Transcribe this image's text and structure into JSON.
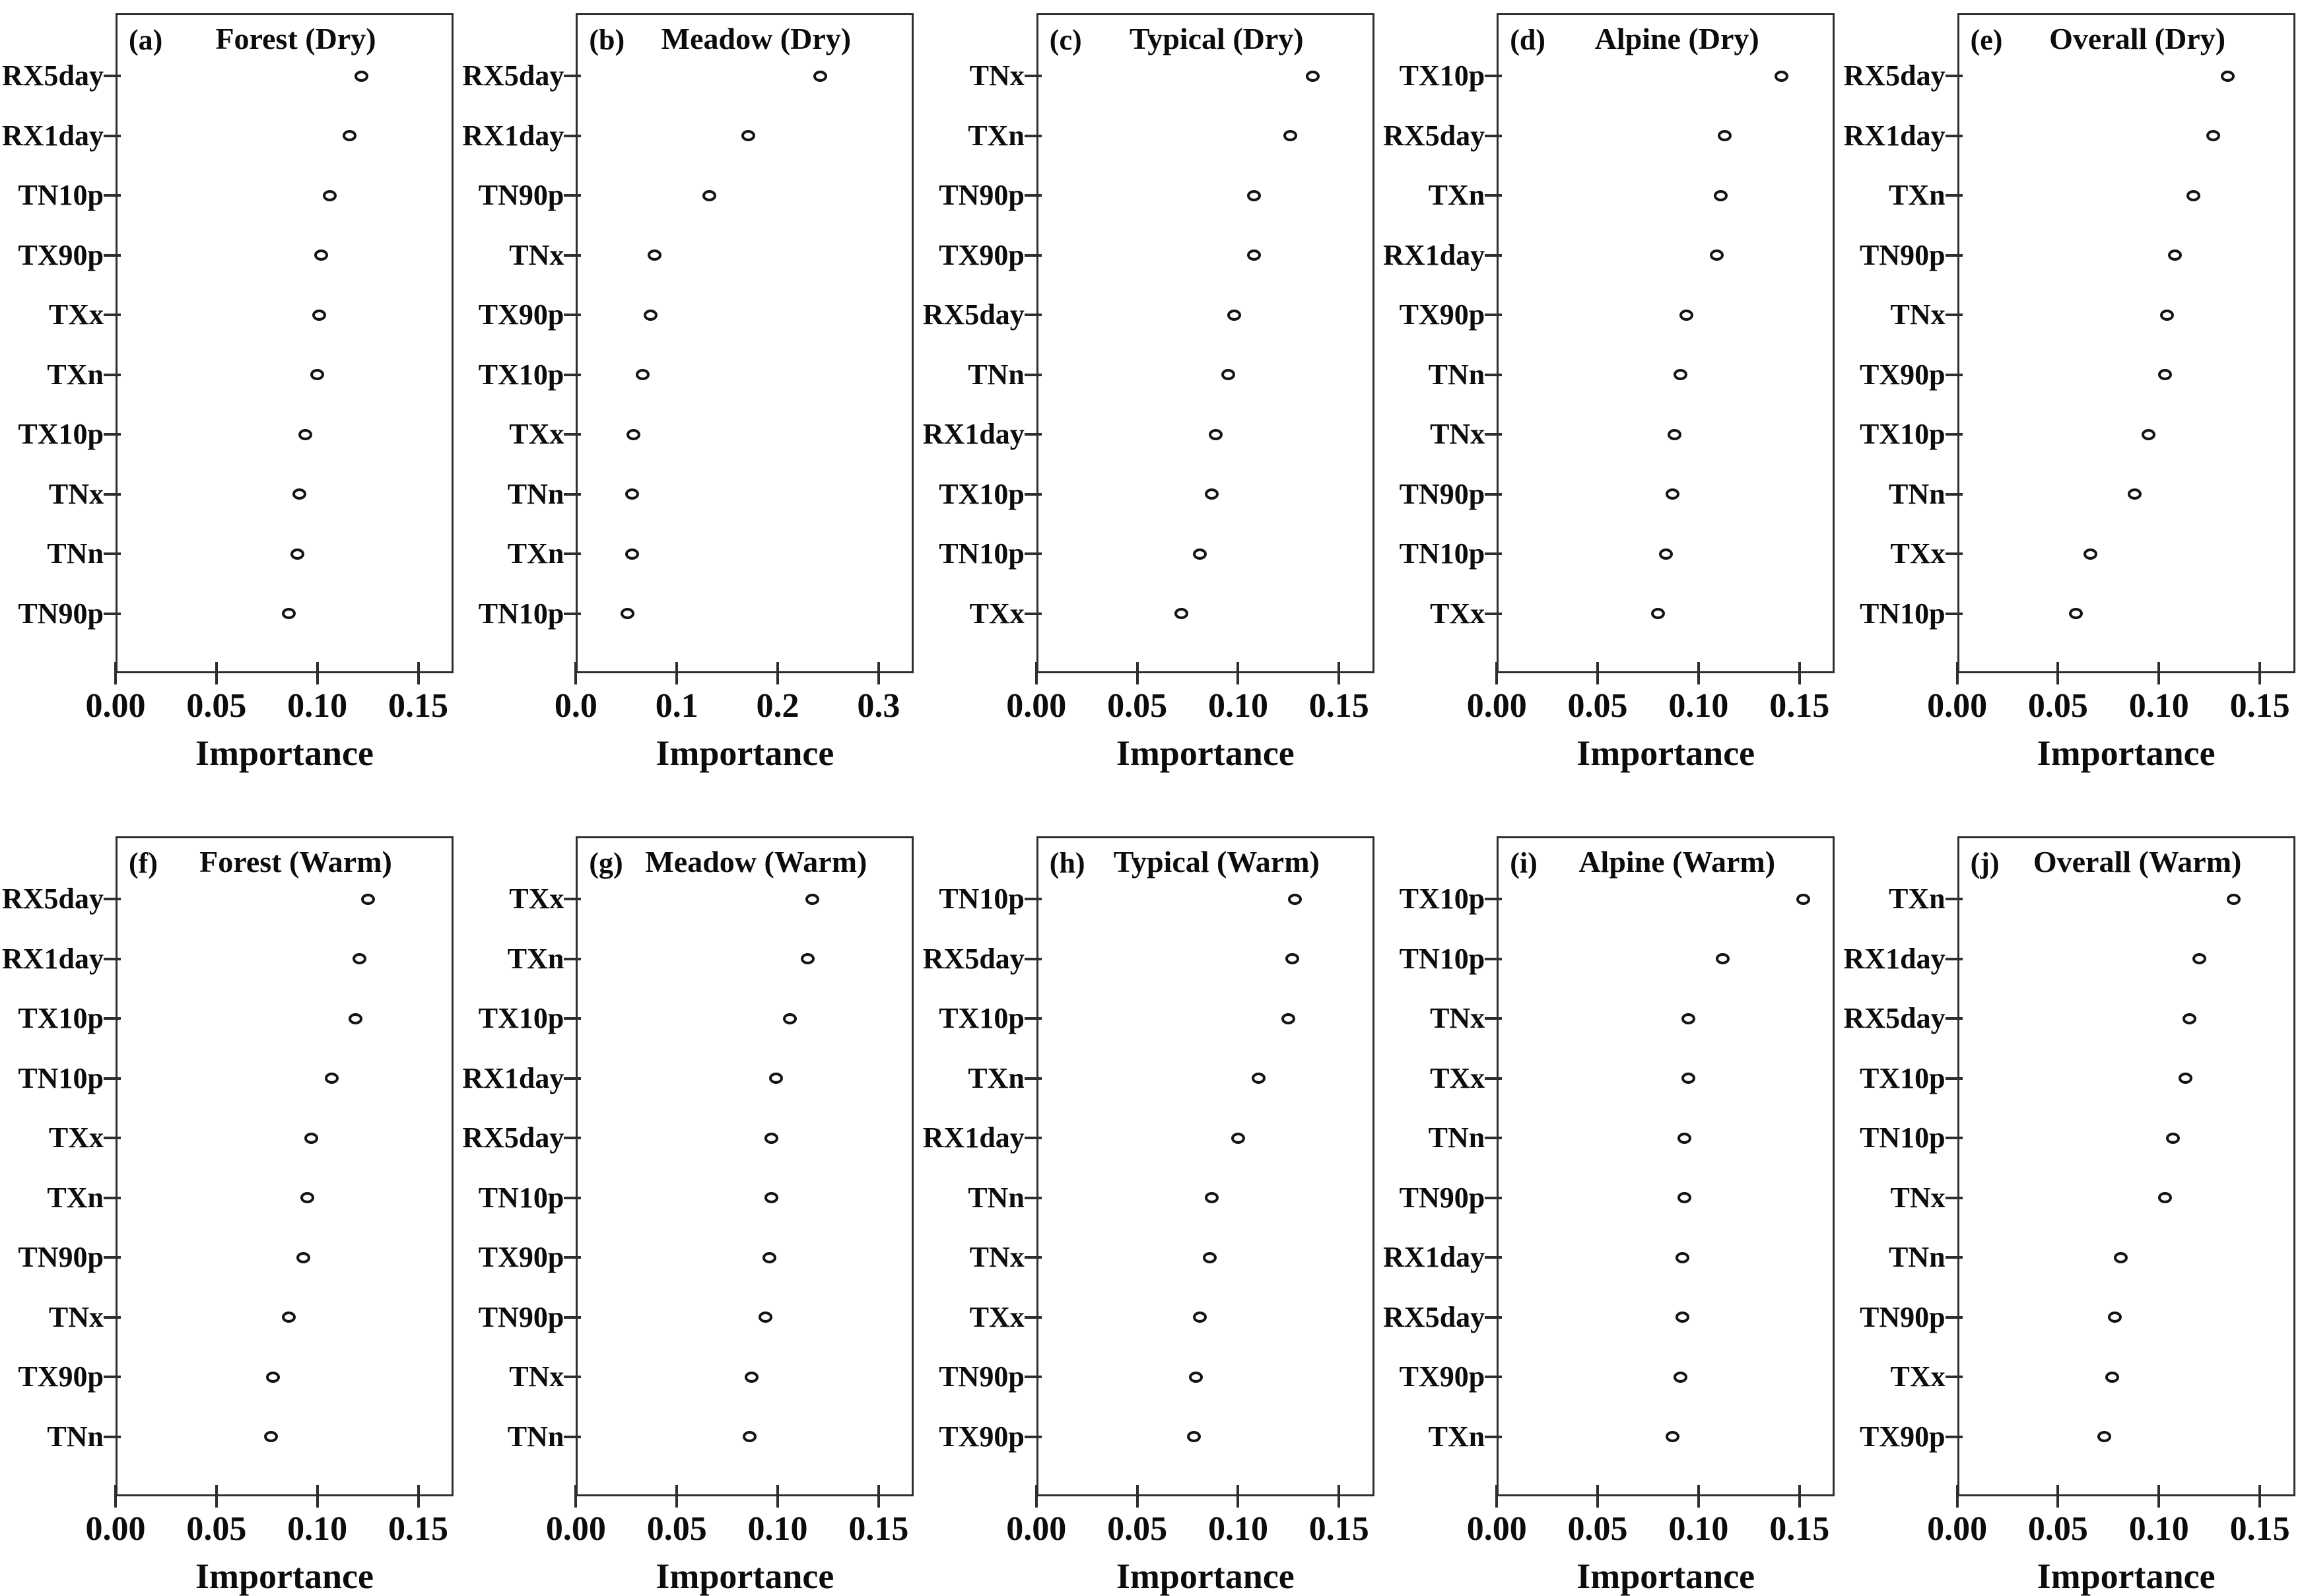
{
  "figure": {
    "description": "Variable importance dot plots for extreme climate indices across vegetation types and seasons"
  },
  "chart_data": [
    {
      "type": "scatter",
      "panel_label": "(a)",
      "title": "Forest (Dry)",
      "xlabel": "Importance",
      "xticks": [
        "0.00",
        "0.05",
        "0.10",
        "0.15"
      ],
      "xtick_values": [
        0,
        0.05,
        0.1,
        0.15
      ],
      "xlim": [
        0,
        0.1675
      ],
      "categories": [
        "RX5day",
        "RX1day",
        "TN10p",
        "TX90p",
        "TXx",
        "TXn",
        "TX10p",
        "TNx",
        "TNn",
        "TN90p"
      ],
      "values": [
        0.122,
        0.116,
        0.106,
        0.102,
        0.101,
        0.1,
        0.094,
        0.091,
        0.09,
        0.086
      ]
    },
    {
      "type": "scatter",
      "panel_label": "(b)",
      "title": "Meadow (Dry)",
      "xlabel": "Importance",
      "xticks": [
        "0.0",
        "0.1",
        "0.2",
        "0.3"
      ],
      "xtick_values": [
        0,
        0.1,
        0.2,
        0.3
      ],
      "xlim": [
        0,
        0.335
      ],
      "categories": [
        "RX5day",
        "RX1day",
        "TN90p",
        "TNx",
        "TX90p",
        "TX10p",
        "TXx",
        "TNn",
        "TXn",
        "TN10p"
      ],
      "values": [
        0.242,
        0.171,
        0.132,
        0.078,
        0.074,
        0.066,
        0.057,
        0.056,
        0.056,
        0.051
      ]
    },
    {
      "type": "scatter",
      "panel_label": "(c)",
      "title": "Typical (Dry)",
      "xlabel": "Importance",
      "xticks": [
        "0.00",
        "0.05",
        "0.10",
        "0.15"
      ],
      "xtick_values": [
        0,
        0.05,
        0.1,
        0.15
      ],
      "xlim": [
        0,
        0.1675
      ],
      "categories": [
        "TNx",
        "TXn",
        "TN90p",
        "TX90p",
        "RX5day",
        "TNn",
        "RX1day",
        "TX10p",
        "TN10p",
        "TXx"
      ],
      "values": [
        0.137,
        0.126,
        0.108,
        0.108,
        0.098,
        0.095,
        0.089,
        0.087,
        0.081,
        0.072
      ]
    },
    {
      "type": "scatter",
      "panel_label": "(d)",
      "title": "Alpine (Dry)",
      "xlabel": "Importance",
      "xticks": [
        "0.00",
        "0.05",
        "0.10",
        "0.15"
      ],
      "xtick_values": [
        0,
        0.05,
        0.1,
        0.15
      ],
      "xlim": [
        0,
        0.1675
      ],
      "categories": [
        "TX10p",
        "RX5day",
        "TXn",
        "RX1day",
        "TX90p",
        "TNn",
        "TNx",
        "TN90p",
        "TN10p",
        "TXx"
      ],
      "values": [
        0.141,
        0.113,
        0.111,
        0.109,
        0.094,
        0.091,
        0.088,
        0.087,
        0.084,
        0.08
      ]
    },
    {
      "type": "scatter",
      "panel_label": "(e)",
      "title": "Overall (Dry)",
      "xlabel": "Importance",
      "xticks": [
        "0.00",
        "0.05",
        "0.10",
        "0.15"
      ],
      "xtick_values": [
        0,
        0.05,
        0.1,
        0.15
      ],
      "xlim": [
        0,
        0.1675
      ],
      "categories": [
        "RX5day",
        "RX1day",
        "TXn",
        "TN90p",
        "TNx",
        "TX90p",
        "TX10p",
        "TNn",
        "TXx",
        "TN10p"
      ],
      "values": [
        0.134,
        0.127,
        0.117,
        0.108,
        0.104,
        0.103,
        0.095,
        0.088,
        0.066,
        0.059
      ]
    },
    {
      "type": "scatter",
      "panel_label": "(f)",
      "title": "Forest (Warm)",
      "xlabel": "Importance",
      "xticks": [
        "0.00",
        "0.05",
        "0.10",
        "0.15"
      ],
      "xtick_values": [
        0,
        0.05,
        0.1,
        0.15
      ],
      "xlim": [
        0,
        0.1675
      ],
      "categories": [
        "RX5day",
        "RX1day",
        "TX10p",
        "TN10p",
        "TXx",
        "TXn",
        "TN90p",
        "TNx",
        "TX90p",
        "TNn"
      ],
      "values": [
        0.125,
        0.121,
        0.119,
        0.107,
        0.097,
        0.095,
        0.093,
        0.086,
        0.078,
        0.077
      ]
    },
    {
      "type": "scatter",
      "panel_label": "(g)",
      "title": "Meadow (Warm)",
      "xlabel": "Importance",
      "xticks": [
        "0.00",
        "0.05",
        "0.10",
        "0.15"
      ],
      "xtick_values": [
        0,
        0.05,
        0.1,
        0.15
      ],
      "xlim": [
        0,
        0.1675
      ],
      "categories": [
        "TXx",
        "TXn",
        "TX10p",
        "RX1day",
        "RX5day",
        "TN10p",
        "TX90p",
        "TN90p",
        "TNx",
        "TNn"
      ],
      "values": [
        0.117,
        0.115,
        0.106,
        0.099,
        0.097,
        0.097,
        0.096,
        0.094,
        0.087,
        0.086
      ]
    },
    {
      "type": "scatter",
      "panel_label": "(h)",
      "title": "Typical (Warm)",
      "xlabel": "Importance",
      "xticks": [
        "0.00",
        "0.05",
        "0.10",
        "0.15"
      ],
      "xtick_values": [
        0,
        0.05,
        0.1,
        0.15
      ],
      "xlim": [
        0,
        0.1675
      ],
      "categories": [
        "TN10p",
        "RX5day",
        "TX10p",
        "TXn",
        "RX1day",
        "TNn",
        "TNx",
        "TXx",
        "TN90p",
        "TX90p"
      ],
      "values": [
        0.128,
        0.127,
        0.125,
        0.11,
        0.1,
        0.087,
        0.086,
        0.081,
        0.079,
        0.078
      ]
    },
    {
      "type": "scatter",
      "panel_label": "(i)",
      "title": "Alpine (Warm)",
      "xlabel": "Importance",
      "xticks": [
        "0.00",
        "0.05",
        "0.10",
        "0.15"
      ],
      "xtick_values": [
        0,
        0.05,
        0.1,
        0.15
      ],
      "xlim": [
        0,
        0.1675
      ],
      "categories": [
        "TX10p",
        "TN10p",
        "TNx",
        "TXx",
        "TNn",
        "TN90p",
        "RX1day",
        "RX5day",
        "TX90p",
        "TXn"
      ],
      "values": [
        0.152,
        0.112,
        0.095,
        0.095,
        0.093,
        0.093,
        0.092,
        0.092,
        0.091,
        0.087
      ]
    },
    {
      "type": "scatter",
      "panel_label": "(j)",
      "title": "Overall (Warm)",
      "xlabel": "Importance",
      "xticks": [
        "0.00",
        "0.05",
        "0.10",
        "0.15"
      ],
      "xtick_values": [
        0,
        0.05,
        0.1,
        0.15
      ],
      "xlim": [
        0,
        0.1675
      ],
      "categories": [
        "TXn",
        "RX1day",
        "RX5day",
        "TX10p",
        "TN10p",
        "TNx",
        "TNn",
        "TN90p",
        "TXx",
        "TX90p"
      ],
      "values": [
        0.137,
        0.12,
        0.115,
        0.113,
        0.107,
        0.103,
        0.081,
        0.078,
        0.077,
        0.073
      ]
    }
  ]
}
